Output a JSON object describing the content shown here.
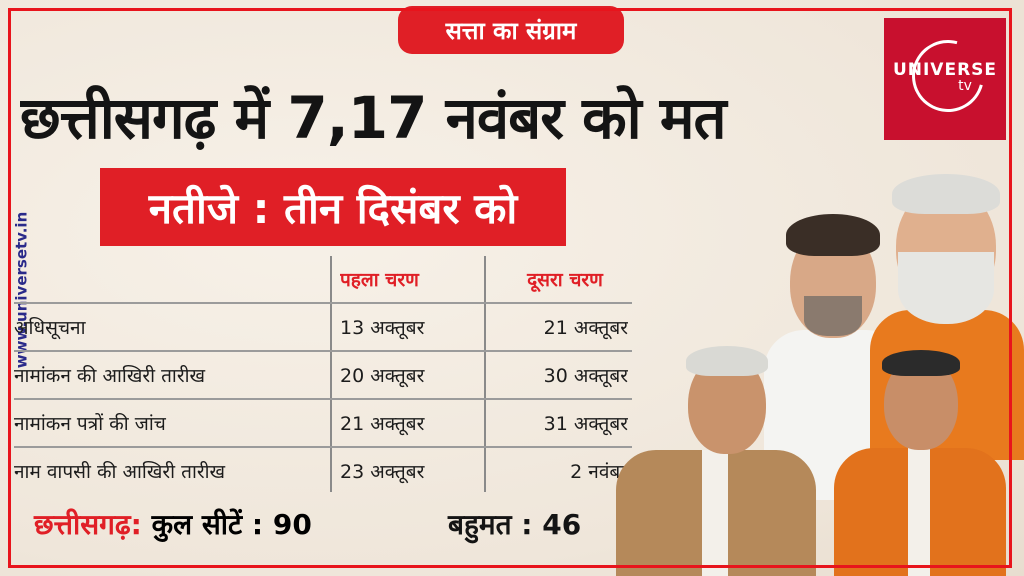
{
  "tag": "सत्ता का संग्राम",
  "headline": "छत्तीसगढ़ में 7,17 नवंबर को मत",
  "result_banner": "नतीजे : तीन दिसंबर को",
  "logo": {
    "name": "UNIVERSE",
    "sub": "tv"
  },
  "side_url": "www.universetv.in",
  "table": {
    "headers": [
      "पहला चरण",
      "दूसरा चरण"
    ],
    "rows": [
      {
        "label": "अधिसूचना",
        "phase1": "13 अक्तूबर",
        "phase2": "21 अक्तूबर"
      },
      {
        "label": "नामांकन की आखिरी तारीख",
        "phase1": "20 अक्तूबर",
        "phase2": "30 अक्तूबर"
      },
      {
        "label": "नामांकन पत्रों की जांच",
        "phase1": "21 अक्तूबर",
        "phase2": "31 अक्तूबर"
      },
      {
        "label": "नाम वापसी की आखिरी तारीख",
        "phase1": "23 अक्तूबर",
        "phase2": "2 नवंबर"
      }
    ]
  },
  "footer": {
    "state_label": "छत्तीसगढ़:",
    "seats_text": "कुल सीटें : 90",
    "majority_text": "बहुमत : 46"
  },
  "colors": {
    "accent": "#e01f26",
    "background": "#f3ece2",
    "logo_bg": "#c8102e"
  }
}
